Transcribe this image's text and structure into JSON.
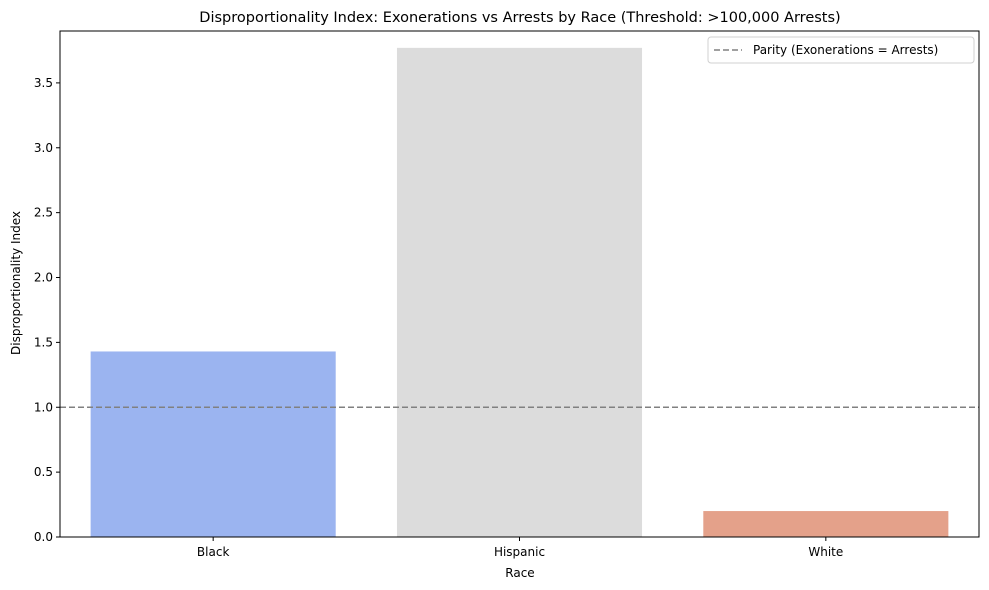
{
  "chart_data": {
    "type": "bar",
    "title": "Disproportionality Index: Exonerations vs Arrests by Race (Threshold: >100,000 Arrests)",
    "xlabel": "Race",
    "ylabel": "Disproportionality Index",
    "categories": [
      "Black",
      "Hispanic",
      "White"
    ],
    "values": [
      1.43,
      3.77,
      0.2
    ],
    "bar_colors": [
      "#9bb4f0",
      "#dcdcdc",
      "#e4a18a"
    ],
    "ylim": [
      0,
      3.9
    ],
    "yticks": [
      0.0,
      0.5,
      1.0,
      1.5,
      2.0,
      2.5,
      3.0,
      3.5
    ],
    "ytick_labels": [
      "0.0",
      "0.5",
      "1.0",
      "1.5",
      "2.0",
      "2.5",
      "3.0",
      "3.5"
    ],
    "reference_line": {
      "value": 1.0,
      "label": "Parity (Exonerations = Arrests)",
      "color": "#808080",
      "style": "dashed"
    },
    "legend_position": "top-right",
    "grid": false
  }
}
